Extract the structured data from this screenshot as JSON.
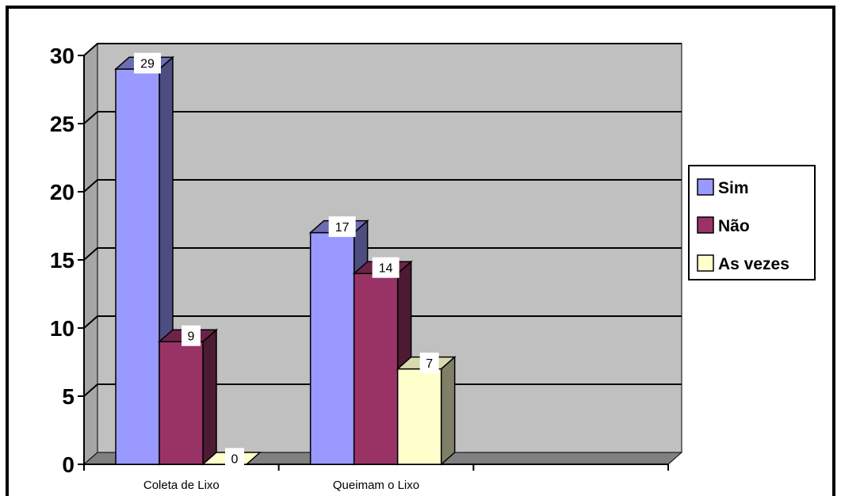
{
  "chart_data": {
    "type": "bar",
    "title": "",
    "xlabel": "",
    "ylabel": "",
    "categories": [
      "Coleta de Lixo",
      "Queimam o Lixo"
    ],
    "extra_category_slots": 1,
    "series": [
      {
        "name": "Sim",
        "values": [
          29,
          17
        ],
        "color": "#9999ff",
        "side_color": "#4d4d80",
        "top_color": "#6d6db3"
      },
      {
        "name": "Não",
        "values": [
          9,
          14
        ],
        "color": "#993366",
        "side_color": "#4d1a33",
        "top_color": "#6b2447"
      },
      {
        "name": "As vezes",
        "values": [
          0,
          7
        ],
        "color": "#ffffcc",
        "side_color": "#808066",
        "top_color": "#d9d9ad"
      }
    ],
    "ylim": [
      0,
      30
    ],
    "yticks": [
      "0",
      "5",
      "10",
      "15",
      "20",
      "25",
      "30"
    ],
    "grid": true,
    "legend_position": "right",
    "colors": {
      "wall": "#c0c0c0",
      "floor": "#808080",
      "side_wall": "#a6a6a6",
      "border": "#000000"
    }
  }
}
